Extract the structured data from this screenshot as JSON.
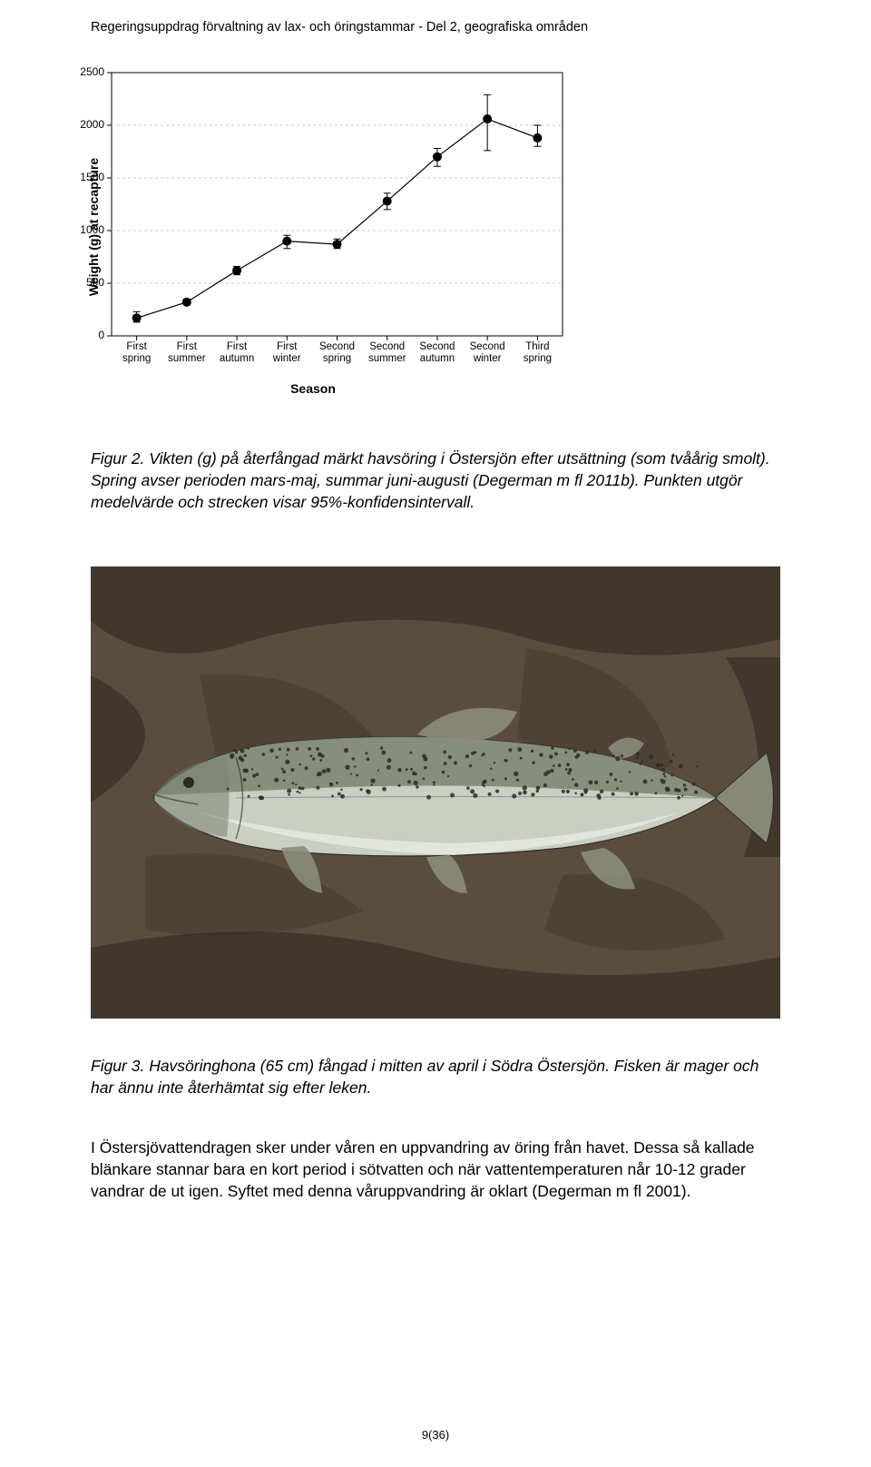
{
  "header": {
    "text": "Regeringsuppdrag förvaltning av lax- och öringstammar  -  Del 2, geografiska områden"
  },
  "chart": {
    "type": "line-errorbar",
    "y_label": "Weight (g) at recapture",
    "x_label": "Season",
    "background_color": "#ffffff",
    "grid_color": "#cccccc",
    "axis_color": "#000000",
    "line_color": "#000000",
    "marker_color": "#000000",
    "line_width": 1.2,
    "marker_radius": 5,
    "error_cap_width": 8,
    "ylim": [
      0,
      2500
    ],
    "ytick_step": 500,
    "y_ticks": [
      0,
      500,
      1000,
      1500,
      2000,
      2500
    ],
    "label_fontsize": 14,
    "tick_fontsize": 12,
    "categories": [
      {
        "line1": "First",
        "line2": "spring"
      },
      {
        "line1": "First",
        "line2": "summer"
      },
      {
        "line1": "First",
        "line2": "autumn"
      },
      {
        "line1": "First",
        "line2": "winter"
      },
      {
        "line1": "Second",
        "line2": "spring"
      },
      {
        "line1": "Second",
        "line2": "summer"
      },
      {
        "line1": "Second",
        "line2": "autumn"
      },
      {
        "line1": "Second",
        "line2": "winter"
      },
      {
        "line1": "Third",
        "line2": "spring"
      }
    ],
    "means": [
      170,
      320,
      620,
      900,
      870,
      1280,
      1700,
      2060,
      1880
    ],
    "err_low": [
      130,
      300,
      580,
      830,
      830,
      1200,
      1610,
      1760,
      1800
    ],
    "err_high": [
      230,
      350,
      660,
      955,
      920,
      1355,
      1780,
      2290,
      2000
    ]
  },
  "caption1": {
    "text": "Figur 2. Vikten (g) på återfångad märkt havsöring i Östersjön efter utsättning (som tvåårig smolt). Spring avser perioden mars-maj, summar juni-augusti (Degerman m fl 2011b). Punkten utgör medelvärde och strecken visar 95%-konfidensintervall."
  },
  "photo": {
    "alt": "Havsöringhona på stenig bakgrund",
    "rock_color": "#5a4d3e",
    "rock_shadow": "#2d261e",
    "fish_body": "#c9cfc3",
    "fish_back": "#7a8270",
    "fish_spot": "#2b2b22",
    "fish_belly": "#e6e8df",
    "fin_color": "#8a8d7a"
  },
  "caption2": {
    "text": "Figur 3. Havsöringhona (65 cm) fångad i mitten av april i Södra Östersjön. Fisken är mager och har ännu inte återhämtat sig efter leken."
  },
  "body": {
    "text": "I Östersjövattendragen sker under våren en uppvandring av öring från havet. Dessa så kallade blänkare stannar bara en kort period i sötvatten och när vattentemperaturen når 10-12 grader vandrar de ut igen. Syftet med denna våruppvandring är oklart (Degerman m fl 2001)."
  },
  "page": {
    "num": "9(36)"
  }
}
